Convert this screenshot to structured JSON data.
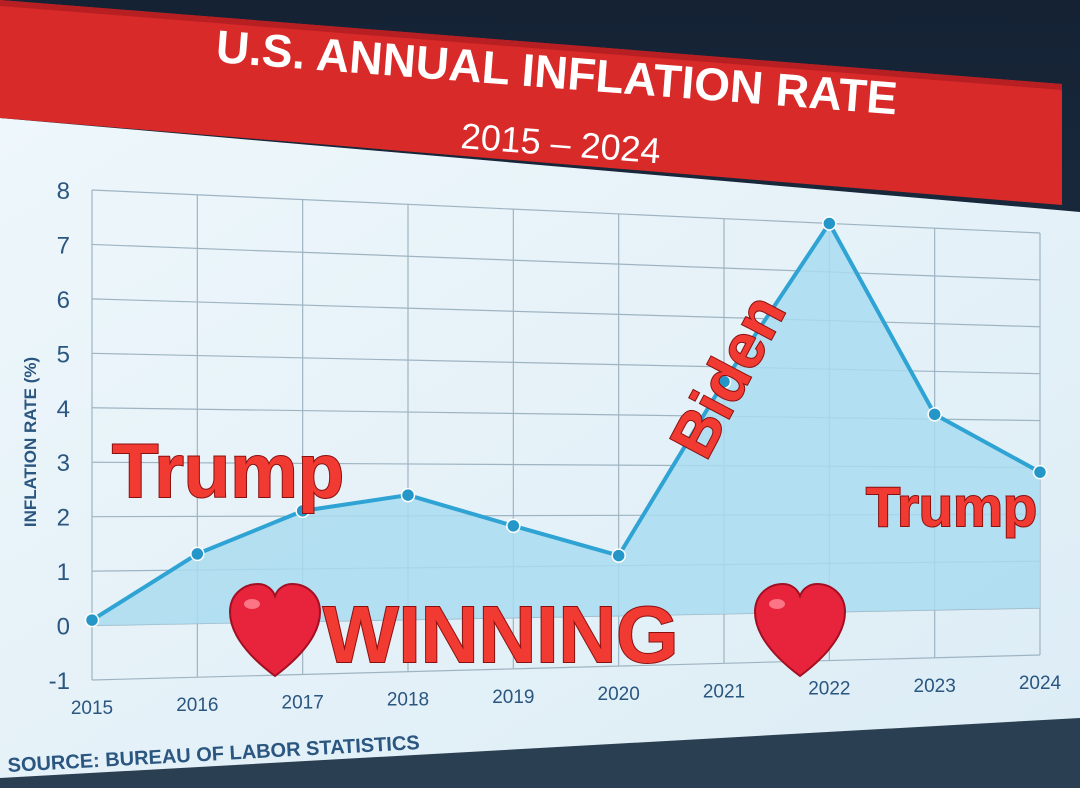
{
  "header": {
    "title": "U.S. ANNUAL INFLATION RATE",
    "subtitle": "2015 – 2024"
  },
  "source": "SOURCE: BUREAU OF LABOR STATISTICS",
  "annotations": {
    "left_label": "Trump",
    "biden_label": "Biden",
    "right_label": "Trump",
    "winning_label": "WINNING"
  },
  "colors": {
    "header_red": "#d92a2a",
    "line": "#2ea3d4",
    "area_fill": "#a9dcf0",
    "marker": "#2496c8",
    "panel": "#e6f2f8",
    "grid": "#9fb4c2",
    "overlay_text": "#f03a32",
    "heart": "#e8233c"
  },
  "chart_data": {
    "type": "area",
    "title": "U.S. ANNUAL INFLATION RATE",
    "subtitle": "2015 – 2024",
    "ylabel": "INFLATION RATE (%)",
    "xlabel": "",
    "ylim": [
      -1,
      8
    ],
    "yticks": [
      "-1",
      "0",
      "1",
      "2",
      "3",
      "4",
      "5",
      "6",
      "7",
      "8"
    ],
    "grid": true,
    "x": [
      "2015",
      "2016",
      "2017",
      "2018",
      "2019",
      "2020",
      "2021",
      "2022",
      "2023",
      "2024"
    ],
    "values": [
      0.1,
      1.3,
      2.1,
      2.4,
      1.8,
      1.2,
      4.7,
      8.0,
      4.1,
      2.9
    ]
  }
}
